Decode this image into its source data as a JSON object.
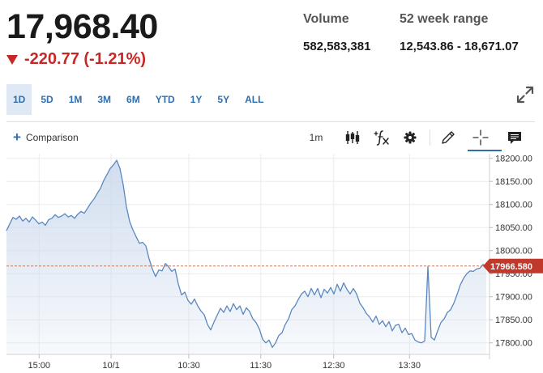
{
  "quote": {
    "price": "17,968.40",
    "change": "-220.77 (-1.21%)",
    "direction": "down",
    "down_color": "#c62828"
  },
  "stats": {
    "volume_label": "Volume",
    "volume_value": "582,583,381",
    "range_label": "52 week range",
    "range_value": "12,543.86 - 18,671.07"
  },
  "range_tabs": [
    {
      "label": "1D",
      "active": true
    },
    {
      "label": "5D",
      "active": false
    },
    {
      "label": "1M",
      "active": false
    },
    {
      "label": "3M",
      "active": false
    },
    {
      "label": "6M",
      "active": false
    },
    {
      "label": "YTD",
      "active": false
    },
    {
      "label": "1Y",
      "active": false
    },
    {
      "label": "5Y",
      "active": false
    },
    {
      "label": "ALL",
      "active": false
    }
  ],
  "toolbar": {
    "comparison_label": "Comparison",
    "interval_label": "1m",
    "icons": [
      "candlestick-icon",
      "study-fx-icon",
      "gear-icon",
      "pencil-icon",
      "crosshair-icon",
      "comment-icon"
    ]
  },
  "chart_data": {
    "type": "area",
    "x_ticks": [
      "15:00",
      "10/1",
      "10:30",
      "11:30",
      "12:30",
      "13:30"
    ],
    "y_ticks": [
      "18200.00",
      "18150.00",
      "18100.00",
      "18050.00",
      "18000.00",
      "17950.00",
      "17900.00",
      "17850.00",
      "17800.00"
    ],
    "ylim": [
      17775,
      18210
    ],
    "last_price_label": "17966.580",
    "last_price": 17966.58,
    "line_color": "#5b87c0",
    "fill_color": "#c9d8ec",
    "reference_line_color": "#c97a50",
    "series": [
      {
        "values": [
          18043,
          18058,
          18072,
          18068,
          18075,
          18064,
          18070,
          18062,
          18073,
          18066,
          18058,
          18062,
          18055,
          18067,
          18070,
          18078,
          18072,
          18075,
          18080,
          18073,
          18076,
          18070,
          18079,
          18085,
          18081,
          18092,
          18103,
          18112,
          18124,
          18135,
          18152,
          18165,
          18178,
          18186,
          18196,
          18178,
          18143,
          18095,
          18063,
          18045,
          18030,
          18016,
          18018,
          18010,
          17982,
          17960,
          17944,
          17958,
          17956,
          17972,
          17965,
          17955,
          17960,
          17928,
          17904,
          17910,
          17892,
          17884,
          17895,
          17880,
          17869,
          17861,
          17840,
          17828,
          17845,
          17860,
          17875,
          17866,
          17880,
          17868,
          17885,
          17872,
          17880,
          17862,
          17876,
          17868,
          17852,
          17844,
          17830,
          17808,
          17800,
          17806,
          17790,
          17800,
          17816,
          17822,
          17840,
          17852,
          17872,
          17880,
          17894,
          17906,
          17912,
          17900,
          17918,
          17904,
          17918,
          17898,
          17916,
          17908,
          17920,
          17906,
          17927,
          17912,
          17930,
          17916,
          17906,
          17918,
          17906,
          17886,
          17876,
          17864,
          17856,
          17845,
          17858,
          17840,
          17848,
          17835,
          17846,
          17826,
          17838,
          17840,
          17822,
          17832,
          17818,
          17820,
          17806,
          17802,
          17800,
          17804,
          17966,
          17812,
          17806,
          17826,
          17844,
          17852,
          17866,
          17872,
          17886,
          17905,
          17926,
          17940,
          17950,
          17956,
          17955,
          17960,
          17962,
          17970,
          17966
        ]
      }
    ]
  }
}
